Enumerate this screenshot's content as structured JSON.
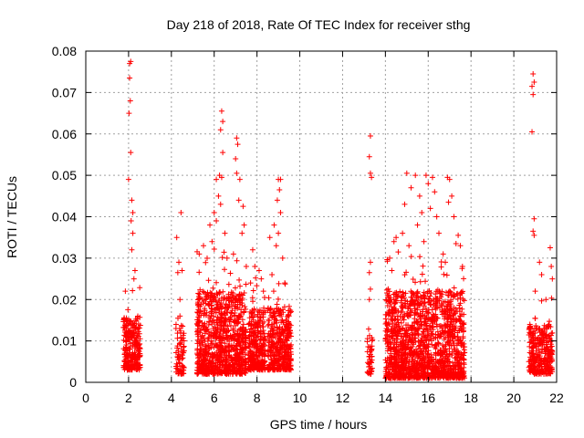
{
  "chart_data": {
    "type": "scatter",
    "title": "Day 218 of 2018, Rate Of TEC Index for receiver sthg",
    "xlabel": "GPS time / hours",
    "ylabel": "ROTI / TECUs",
    "xlim": [
      0,
      22
    ],
    "ylim": [
      0,
      0.08
    ],
    "xticks": [
      0,
      2,
      4,
      6,
      8,
      10,
      12,
      14,
      16,
      18,
      20,
      22
    ],
    "yticks": [
      0,
      0.01,
      0.02,
      0.03,
      0.04,
      0.05,
      0.06,
      0.07,
      0.08
    ],
    "xtick_labels": [
      "0",
      "2",
      "4",
      "6",
      "8",
      "10",
      "12",
      "14",
      "16",
      "18",
      "20",
      "22"
    ],
    "ytick_labels": [
      "0",
      "0.01",
      "0.02",
      "0.03",
      "0.04",
      "0.05",
      "0.06",
      "0.07",
      "0.08"
    ],
    "grid": true,
    "marker": "+",
    "color": "#ff0000",
    "clusters": [
      {
        "x_range": [
          1.75,
          2.55
        ],
        "y_base": [
          0.003,
          0.016
        ],
        "points": 260,
        "outliers": [
          [
            2.05,
            0.077
          ],
          [
            2.1,
            0.0775
          ],
          [
            2.05,
            0.0735
          ],
          [
            2.08,
            0.068
          ],
          [
            2.02,
            0.065
          ],
          [
            2.1,
            0.0555
          ],
          [
            2.0,
            0.049
          ],
          [
            2.15,
            0.044
          ],
          [
            2.2,
            0.041
          ],
          [
            2.12,
            0.039
          ],
          [
            2.2,
            0.036
          ],
          [
            2.15,
            0.032
          ],
          [
            2.3,
            0.027
          ],
          [
            1.85,
            0.022
          ],
          [
            2.25,
            0.025
          ],
          [
            1.9,
            0.0155
          ]
        ]
      },
      {
        "x_range": [
          4.2,
          4.6
        ],
        "y_base": [
          0.002,
          0.014
        ],
        "points": 70,
        "outliers": [
          [
            4.25,
            0.035
          ],
          [
            4.45,
            0.041
          ],
          [
            4.35,
            0.029
          ],
          [
            4.5,
            0.027
          ],
          [
            4.3,
            0.0265
          ],
          [
            4.4,
            0.02
          ],
          [
            4.4,
            0.016
          ]
        ]
      },
      {
        "x_range": [
          5.2,
          7.5
        ],
        "y_base": [
          0.002,
          0.022
        ],
        "points": 900,
        "outliers": [
          [
            6.35,
            0.0655
          ],
          [
            6.4,
            0.063
          ],
          [
            6.3,
            0.061
          ],
          [
            6.4,
            0.0555
          ],
          [
            6.25,
            0.05
          ],
          [
            6.35,
            0.0495
          ],
          [
            6.1,
            0.049
          ],
          [
            7.05,
            0.059
          ],
          [
            7.1,
            0.0575
          ],
          [
            7.0,
            0.054
          ],
          [
            7.05,
            0.0505
          ],
          [
            7.2,
            0.049
          ],
          [
            6.2,
            0.045
          ],
          [
            6.3,
            0.043
          ],
          [
            7.15,
            0.044
          ],
          [
            7.35,
            0.0425
          ],
          [
            7.4,
            0.038
          ],
          [
            6.0,
            0.041
          ],
          [
            5.8,
            0.038
          ],
          [
            6.5,
            0.036
          ],
          [
            7.3,
            0.036
          ],
          [
            5.5,
            0.033
          ],
          [
            5.9,
            0.034
          ],
          [
            6.6,
            0.03
          ],
          [
            6.9,
            0.031
          ],
          [
            7.5,
            0.028
          ],
          [
            5.3,
            0.031
          ],
          [
            6.1,
            0.039
          ]
        ]
      },
      {
        "x_range": [
          7.6,
          8.4
        ],
        "y_base": [
          0.003,
          0.018
        ],
        "points": 300,
        "outliers": [
          [
            7.8,
            0.032
          ],
          [
            7.9,
            0.028
          ],
          [
            8.1,
            0.027
          ],
          [
            8.2,
            0.025
          ],
          [
            7.7,
            0.024
          ],
          [
            8.3,
            0.022
          ]
        ]
      },
      {
        "x_range": [
          8.5,
          9.6
        ],
        "y_base": [
          0.003,
          0.018
        ],
        "points": 380,
        "outliers": [
          [
            9.0,
            0.049
          ],
          [
            9.1,
            0.049
          ],
          [
            9.05,
            0.0465
          ],
          [
            8.95,
            0.044
          ],
          [
            9.1,
            0.041
          ],
          [
            8.8,
            0.038
          ],
          [
            9.0,
            0.036
          ],
          [
            8.6,
            0.035
          ],
          [
            8.9,
            0.033
          ],
          [
            9.2,
            0.03
          ],
          [
            8.7,
            0.026
          ],
          [
            9.3,
            0.024
          ]
        ]
      },
      {
        "x_range": [
          13.15,
          13.4
        ],
        "y_base": [
          0.002,
          0.012
        ],
        "points": 45,
        "outliers": [
          [
            13.3,
            0.0595
          ],
          [
            13.25,
            0.0545
          ],
          [
            13.3,
            0.0505
          ],
          [
            13.35,
            0.0495
          ],
          [
            13.3,
            0.029
          ],
          [
            13.25,
            0.0265
          ],
          [
            13.3,
            0.0225
          ],
          [
            13.25,
            0.02
          ]
        ]
      },
      {
        "x_range": [
          14.0,
          17.7
        ],
        "y_base": [
          0.001,
          0.022
        ],
        "points": 1500,
        "outliers": [
          [
            14.5,
            0.035
          ],
          [
            14.4,
            0.034
          ],
          [
            14.6,
            0.0315
          ],
          [
            14.2,
            0.03
          ],
          [
            15.0,
            0.0505
          ],
          [
            15.4,
            0.05
          ],
          [
            15.2,
            0.047
          ],
          [
            15.6,
            0.045
          ],
          [
            15.9,
            0.05
          ],
          [
            16.2,
            0.0495
          ],
          [
            16.0,
            0.048
          ],
          [
            16.3,
            0.046
          ],
          [
            16.1,
            0.042
          ],
          [
            16.9,
            0.0495
          ],
          [
            17.0,
            0.049
          ],
          [
            17.1,
            0.045
          ],
          [
            16.95,
            0.0435
          ],
          [
            17.2,
            0.04
          ],
          [
            17.4,
            0.0355
          ],
          [
            17.3,
            0.0335
          ],
          [
            17.5,
            0.033
          ],
          [
            14.9,
            0.043
          ],
          [
            15.7,
            0.041
          ],
          [
            16.4,
            0.04
          ],
          [
            15.5,
            0.038
          ],
          [
            14.8,
            0.036
          ],
          [
            16.5,
            0.036
          ],
          [
            15.1,
            0.033
          ],
          [
            16.7,
            0.031
          ],
          [
            15.8,
            0.034
          ],
          [
            17.6,
            0.028
          ],
          [
            14.3,
            0.027
          ],
          [
            16.8,
            0.029
          ]
        ]
      },
      {
        "x_range": [
          20.7,
          21.8
        ],
        "y_base": [
          0.002,
          0.014
        ],
        "points": 320,
        "outliers": [
          [
            20.9,
            0.0745
          ],
          [
            20.95,
            0.0725
          ],
          [
            20.85,
            0.0715
          ],
          [
            20.9,
            0.0695
          ],
          [
            20.85,
            0.0605
          ],
          [
            20.95,
            0.0395
          ],
          [
            20.9,
            0.0365
          ],
          [
            20.95,
            0.0355
          ],
          [
            21.7,
            0.0325
          ],
          [
            21.2,
            0.029
          ],
          [
            21.3,
            0.026
          ],
          [
            21.75,
            0.028
          ],
          [
            21.0,
            0.022
          ],
          [
            21.5,
            0.02
          ],
          [
            21.8,
            0.025
          ]
        ]
      }
    ]
  }
}
